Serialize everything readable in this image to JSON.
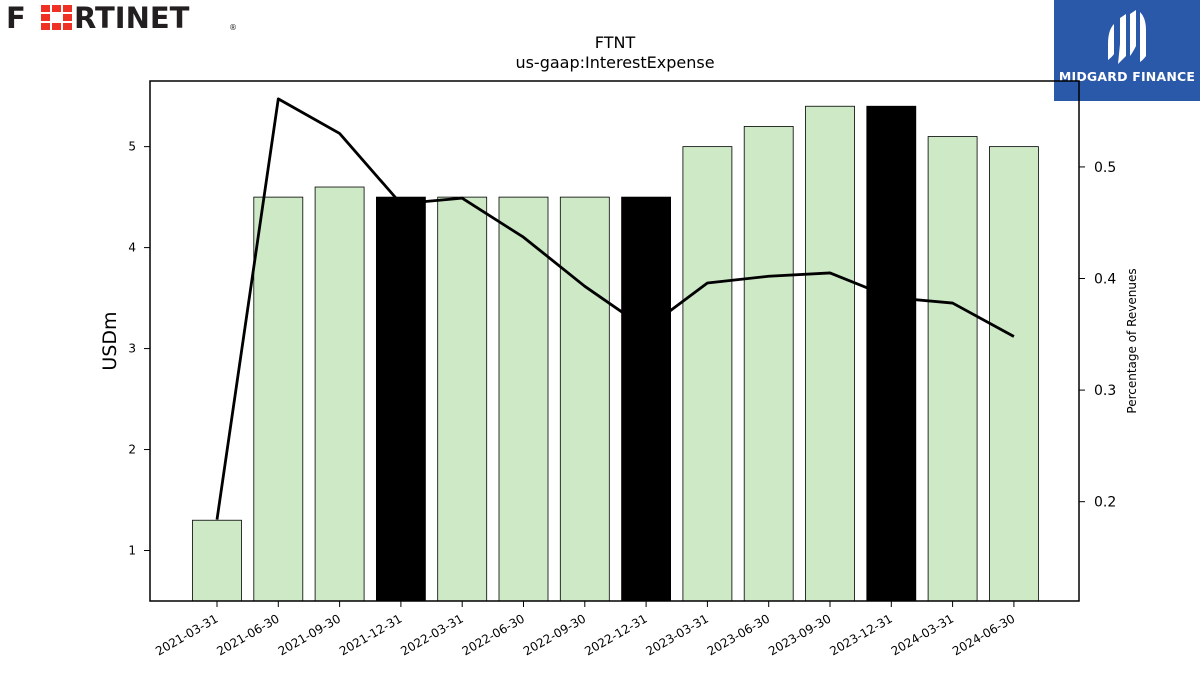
{
  "brand": {
    "name": "FORTINET",
    "registered_mark": "®"
  },
  "badge": {
    "text": "MIDGARD FINANCE",
    "color": "#2b59aa"
  },
  "chart_data": {
    "type": "bar",
    "title": "FTNT",
    "subtitle": "us-gaap:InterestExpense",
    "ylabel": "USDm",
    "y2label": "Percentage of Revenues",
    "ylim": [
      0.5,
      5.65
    ],
    "y2lim": [
      0.111,
      0.577
    ],
    "yticks": [
      1,
      2,
      3,
      4,
      5
    ],
    "y2ticks": [
      0.2,
      0.3,
      0.4,
      0.5
    ],
    "categories": [
      "2021-03-31",
      "2021-06-30",
      "2021-09-30",
      "2021-12-31",
      "2022-03-31",
      "2022-06-30",
      "2022-09-30",
      "2022-12-31",
      "2023-03-31",
      "2023-06-30",
      "2023-09-30",
      "2023-12-31",
      "2024-03-31",
      "2024-06-30"
    ],
    "series": [
      {
        "type": "bar",
        "values": [
          1.3,
          4.5,
          4.6,
          4.5,
          4.5,
          4.5,
          4.5,
          4.5,
          5.0,
          5.2,
          5.4,
          5.4,
          5.1,
          5.0
        ]
      },
      {
        "type": "line",
        "axis": "right",
        "values": [
          0.184,
          0.561,
          0.53,
          0.467,
          0.472,
          0.437,
          0.393,
          0.355,
          0.396,
          0.402,
          0.405,
          0.383,
          0.378,
          0.348
        ]
      }
    ],
    "bar_colors": [
      "#cde9c6",
      "#cde9c6",
      "#cde9c6",
      "#000000",
      "#cde9c6",
      "#cde9c6",
      "#cde9c6",
      "#000000",
      "#cde9c6",
      "#cde9c6",
      "#cde9c6",
      "#000000",
      "#cde9c6",
      "#cde9c6"
    ],
    "line_color": "#000000",
    "grid": false,
    "legend": "none"
  }
}
